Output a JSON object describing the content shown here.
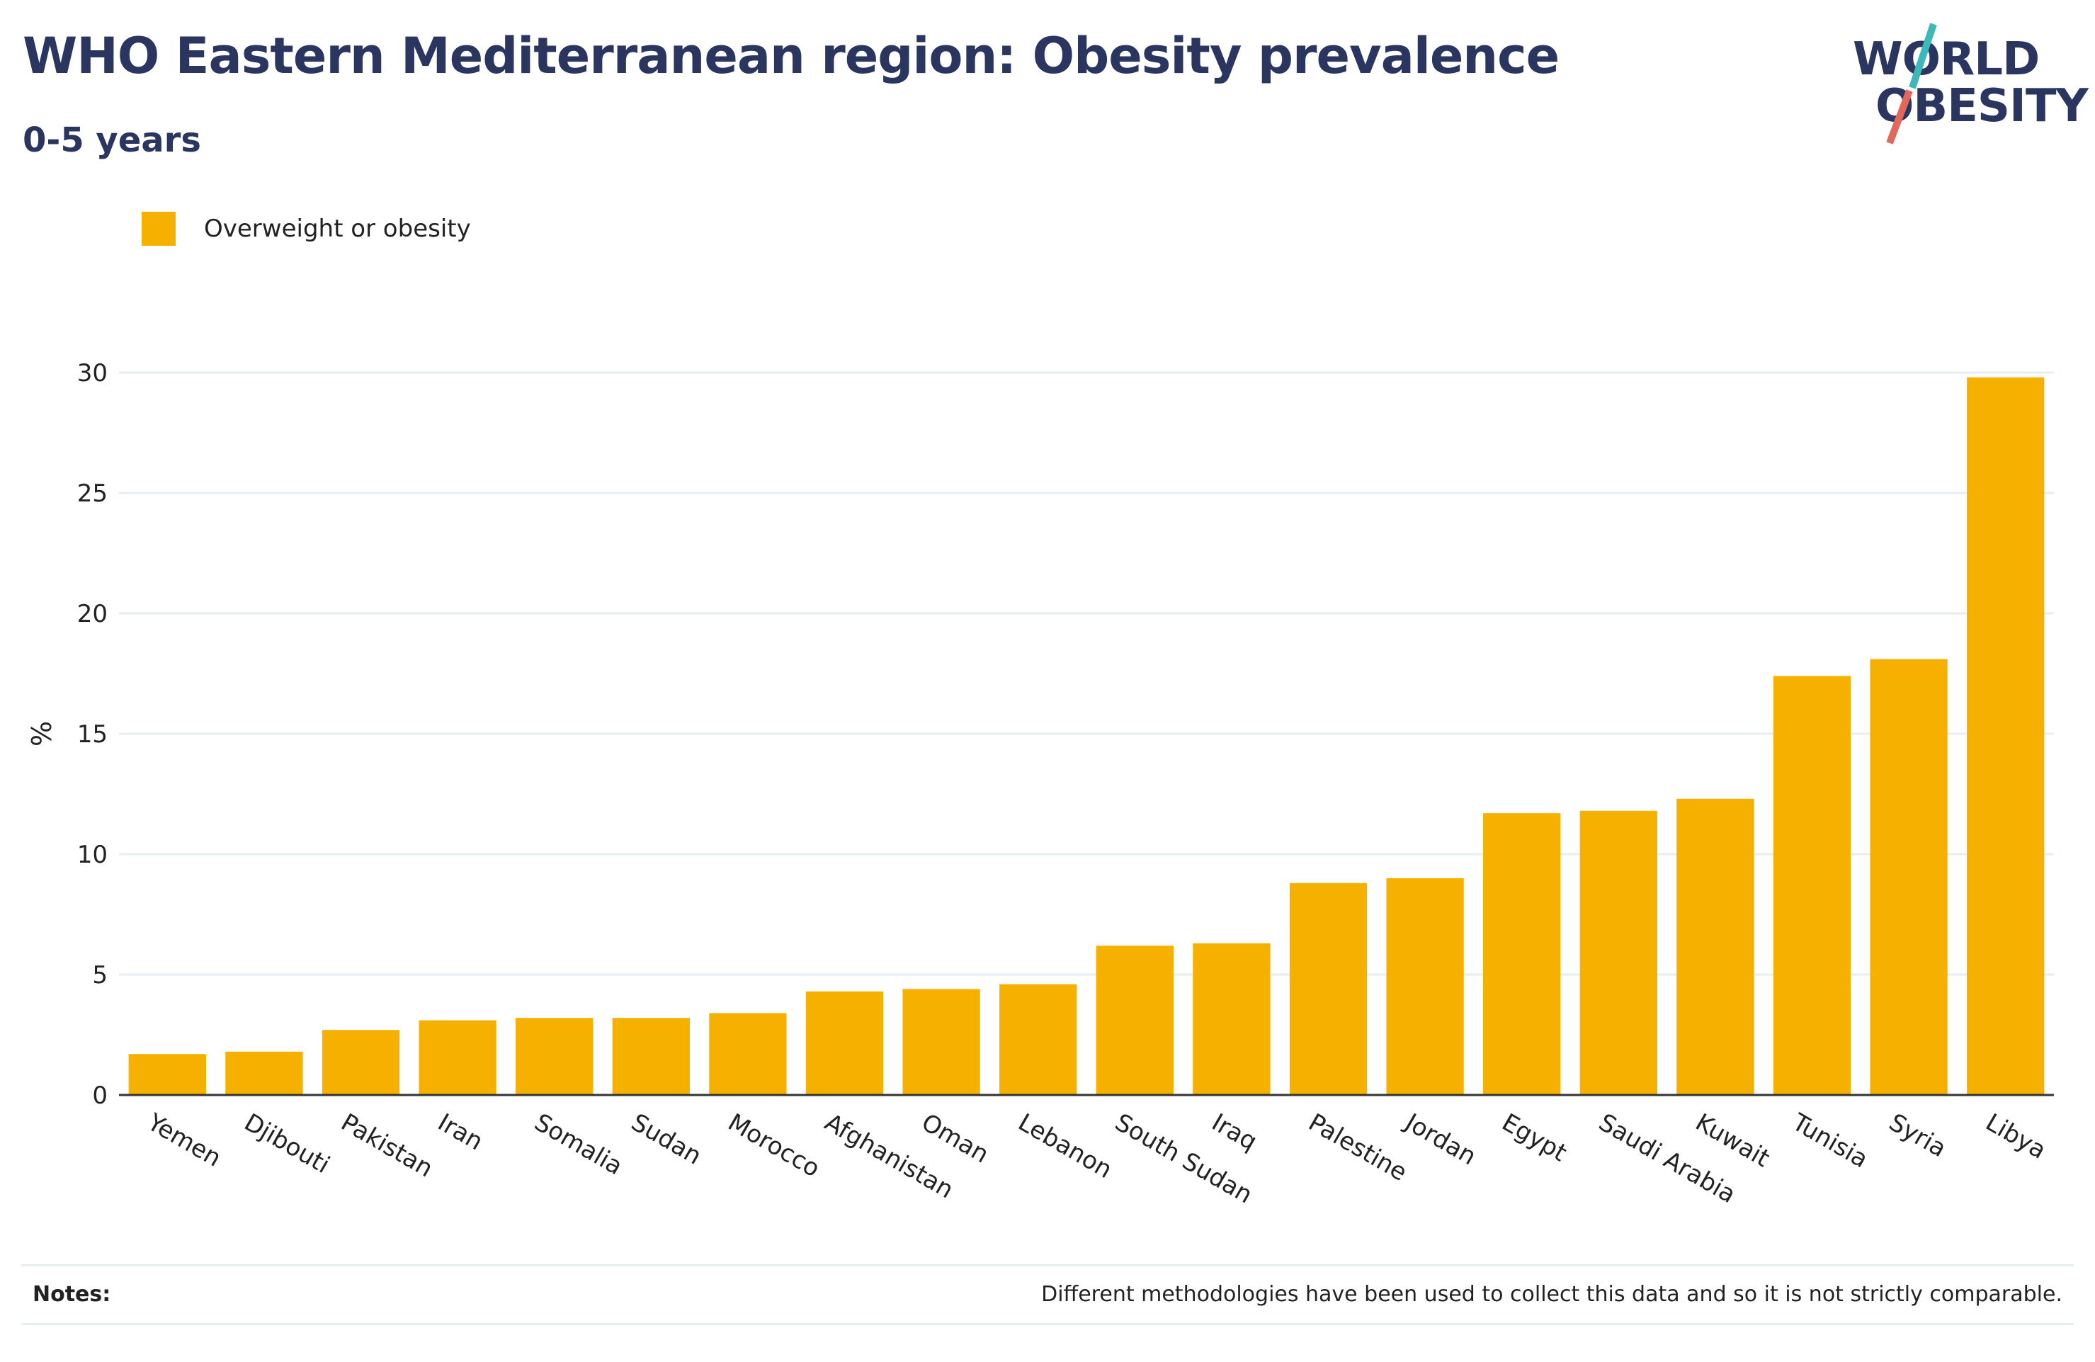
{
  "header": {
    "title": "WHO Eastern Mediterranean region: Obesity prevalence",
    "subtitle": "0-5 years"
  },
  "logo": {
    "line1": "WORLD",
    "line2": "OBESITY",
    "slash_colors": [
      "#3cb8b8",
      "#e2685c"
    ]
  },
  "legend": {
    "items": [
      {
        "label": "Overweight or obesity",
        "color": "#f5b000"
      }
    ]
  },
  "chart_data": {
    "type": "bar",
    "title": "WHO Eastern Mediterranean region: Obesity prevalence",
    "subtitle": "0-5 years",
    "xlabel": "",
    "ylabel": "%",
    "ylim": [
      0,
      30
    ],
    "yticks": [
      0,
      5,
      10,
      15,
      20,
      25,
      30
    ],
    "grid": true,
    "legend_position": "top-left",
    "categories": [
      "Yemen",
      "Djibouti",
      "Pakistan",
      "Iran",
      "Somalia",
      "Sudan",
      "Morocco",
      "Afghanistan",
      "Oman",
      "Lebanon",
      "South Sudan",
      "Iraq",
      "Palestine",
      "Jordan",
      "Egypt",
      "Saudi Arabia",
      "Kuwait",
      "Tunisia",
      "Syria",
      "Libya"
    ],
    "series": [
      {
        "name": "Overweight or obesity",
        "color": "#f5b000",
        "values": [
          1.7,
          1.8,
          2.7,
          3.1,
          3.2,
          3.2,
          3.4,
          4.3,
          4.4,
          4.6,
          6.2,
          6.3,
          8.8,
          9.0,
          11.7,
          11.8,
          12.3,
          17.4,
          18.1,
          29.8
        ]
      }
    ]
  },
  "footer": {
    "notes_label": "Notes:",
    "notes_text": "Different methodologies have been used to collect this data and so it is not strictly comparable."
  }
}
